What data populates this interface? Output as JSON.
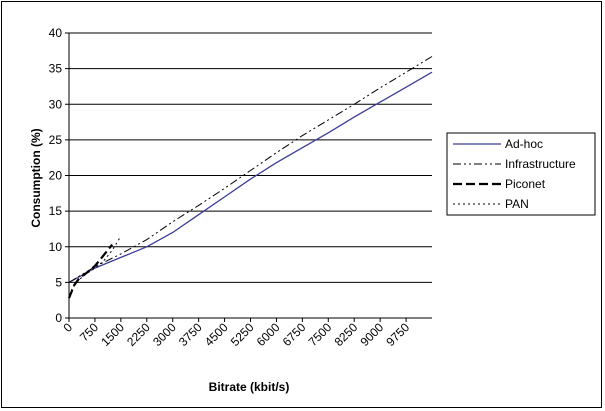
{
  "chart_data": {
    "type": "line",
    "title": "",
    "xlabel": "Bitrate (kbit/s)",
    "ylabel": "Consumption (%)",
    "xlim": [
      0,
      10500
    ],
    "ylim": [
      0,
      40
    ],
    "x_ticks": [
      "0",
      "750",
      "1500",
      "2250",
      "3000",
      "3750",
      "4500",
      "5250",
      "6000",
      "6750",
      "7500",
      "8250",
      "9000",
      "9750"
    ],
    "y_ticks": [
      "0",
      "5",
      "10",
      "15",
      "20",
      "25",
      "30",
      "35",
      "40"
    ],
    "grid": "horizontal",
    "legend_position": "right",
    "series": [
      {
        "name": "Ad-hoc",
        "color": "#3c3c9a",
        "style": "solid",
        "x": [
          0,
          750,
          1500,
          2250,
          3000,
          3750,
          4500,
          5250,
          6000,
          6750,
          7500,
          8250,
          9000,
          9750,
          10500
        ],
        "values": [
          5.0,
          7.0,
          8.5,
          10.0,
          12.0,
          14.5,
          17.0,
          19.5,
          21.8,
          23.9,
          26.0,
          28.2,
          30.3,
          32.4,
          34.5
        ]
      },
      {
        "name": "Infrastructure",
        "color": "#000000",
        "style": "dash-dot-dot",
        "x": [
          0,
          750,
          1500,
          2250,
          3000,
          3750,
          4500,
          5250,
          6000,
          6750,
          7500,
          8250,
          9000,
          9750,
          10500
        ],
        "values": [
          5.0,
          7.2,
          9.0,
          11.0,
          13.5,
          15.8,
          18.2,
          20.7,
          23.2,
          25.6,
          27.8,
          30.0,
          32.3,
          34.5,
          36.7
        ]
      },
      {
        "name": "Piconet",
        "color": "#000000",
        "style": "long-dash",
        "x": [
          0,
          150,
          300,
          500,
          750,
          1000,
          1250
        ],
        "values": [
          2.8,
          4.6,
          5.6,
          6.3,
          7.3,
          8.8,
          10.3
        ]
      },
      {
        "name": "PAN",
        "color": "#000000",
        "style": "dotted",
        "x": [
          0,
          100,
          250,
          500,
          750,
          1000,
          1250,
          1500
        ],
        "values": [
          3.2,
          4.2,
          5.2,
          6.2,
          7.0,
          8.0,
          9.5,
          11.5
        ]
      }
    ]
  }
}
